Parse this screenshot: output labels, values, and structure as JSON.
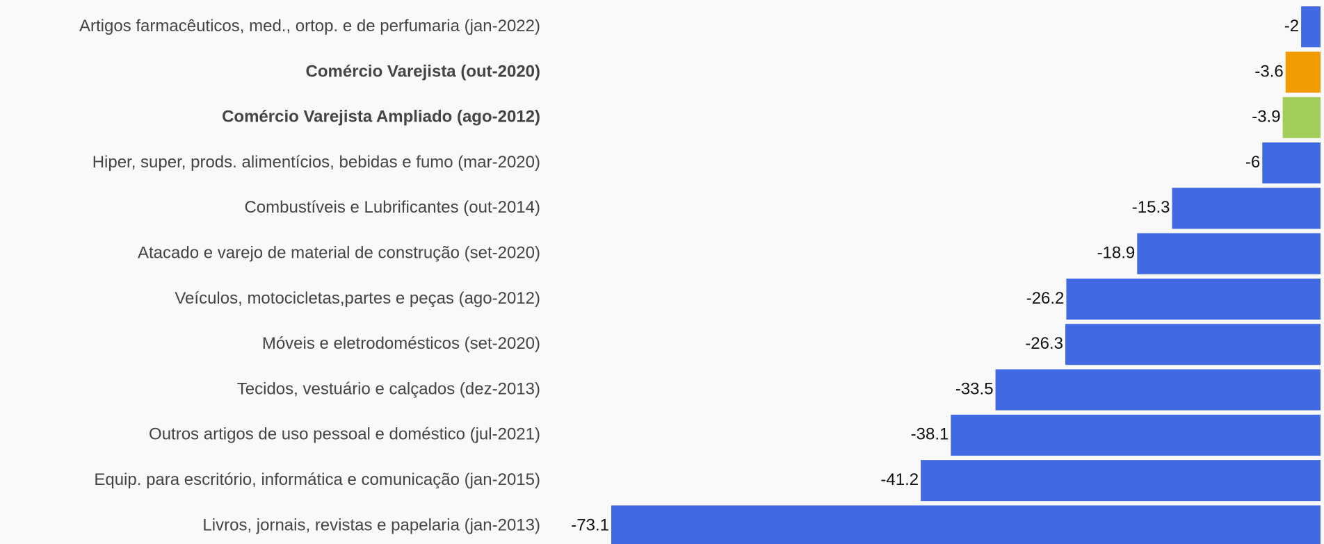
{
  "chart_data": {
    "type": "bar",
    "orientation": "horizontal",
    "categories": [
      "Artigos farmacêuticos, med., ortop. e de perfumaria (jan-2022)",
      "Comércio Varejista (out-2020)",
      "Comércio Varejista Ampliado (ago-2012)",
      "Hiper, super, prods.  alimentícios, bebidas e fumo (mar-2020)",
      "Combustíveis e Lubrificantes (out-2014)",
      "Atacado e varejo de material de construção (set-2020)",
      "Veículos, motocicletas,partes e peças (ago-2012)",
      "Móveis e eletrodomésticos (set-2020)",
      "Tecidos, vestuário e calçados (dez-2013)",
      "Outros artigos de uso pessoal e doméstico (jul-2021)",
      "Equip. para escritório, informática e comunicação (jan-2015)",
      "Livros, jornais, revistas e papelaria (jan-2013)"
    ],
    "values": [
      -2,
      -3.6,
      -3.9,
      -6,
      -15.3,
      -18.9,
      -26.2,
      -26.3,
      -33.5,
      -38.1,
      -41.2,
      -73.1
    ],
    "colors": [
      "#4169e1",
      "#f29b00",
      "#a3cd5a",
      "#4169e1",
      "#4169e1",
      "#4169e1",
      "#4169e1",
      "#4169e1",
      "#4169e1",
      "#4169e1",
      "#4169e1",
      "#4169e1"
    ],
    "label_weights": [
      "normal",
      "bold",
      "bold",
      "normal",
      "normal",
      "normal",
      "normal",
      "normal",
      "normal",
      "normal",
      "normal",
      "normal"
    ]
  }
}
